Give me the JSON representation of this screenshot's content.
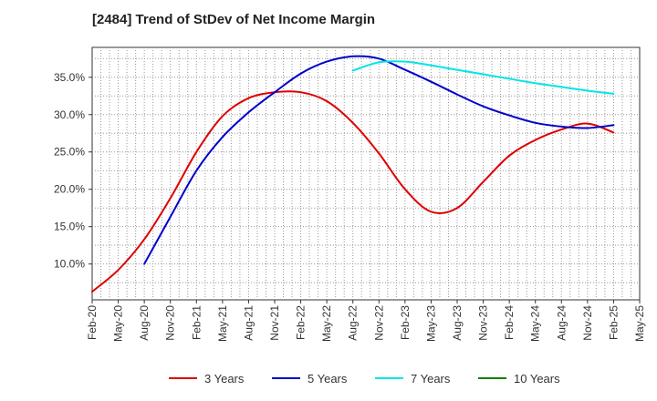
{
  "chart_data": {
    "type": "line",
    "title": "[2484]  Trend of StDev of Net Income Margin",
    "xlabel": "",
    "ylabel": "",
    "x_ticks": [
      "Feb-20",
      "May-20",
      "Aug-20",
      "Nov-20",
      "Feb-21",
      "May-21",
      "Aug-21",
      "Nov-21",
      "Feb-22",
      "May-22",
      "Aug-22",
      "Nov-22",
      "Feb-23",
      "May-23",
      "Aug-23",
      "Nov-23",
      "Feb-24",
      "May-24",
      "Aug-24",
      "Nov-24",
      "Feb-25",
      "May-25"
    ],
    "y_ticks": [
      10,
      15,
      20,
      25,
      30,
      35
    ],
    "y_tick_labels": [
      "10.0%",
      "15.0%",
      "20.0%",
      "25.0%",
      "30.0%",
      "35.0%"
    ],
    "ylim": [
      5.2,
      39.0
    ],
    "grid": true,
    "legend_position": "bottom",
    "series": [
      {
        "name": "3 Years",
        "color": "#dd0000",
        "points": [
          [
            "Feb-20",
            6.3
          ],
          [
            "May-20",
            9.2
          ],
          [
            "Aug-20",
            13.3
          ],
          [
            "Nov-20",
            18.8
          ],
          [
            "Feb-21",
            25.0
          ],
          [
            "May-21",
            29.8
          ],
          [
            "Aug-21",
            32.2
          ],
          [
            "Nov-21",
            33.0
          ],
          [
            "Feb-22",
            33.0
          ],
          [
            "May-22",
            31.8
          ],
          [
            "Aug-22",
            28.9
          ],
          [
            "Nov-22",
            24.8
          ],
          [
            "Feb-23",
            20.0
          ],
          [
            "May-23",
            17.0
          ],
          [
            "Aug-23",
            17.5
          ],
          [
            "Nov-23",
            21.0
          ],
          [
            "Feb-24",
            24.5
          ],
          [
            "May-24",
            26.6
          ],
          [
            "Aug-24",
            28.0
          ],
          [
            "Nov-24",
            28.8
          ],
          [
            "Feb-25",
            27.6
          ]
        ]
      },
      {
        "name": "5 Years",
        "color": "#0000cc",
        "points": [
          [
            "Aug-20",
            10.0
          ],
          [
            "Nov-20",
            16.3
          ],
          [
            "Feb-21",
            22.5
          ],
          [
            "May-21",
            27.0
          ],
          [
            "Aug-21",
            30.3
          ],
          [
            "Nov-21",
            33.0
          ],
          [
            "Feb-22",
            35.5
          ],
          [
            "May-22",
            37.1
          ],
          [
            "Aug-22",
            37.8
          ],
          [
            "Nov-22",
            37.5
          ],
          [
            "Feb-23",
            36.0
          ],
          [
            "May-23",
            34.4
          ],
          [
            "Aug-23",
            32.7
          ],
          [
            "Nov-23",
            31.1
          ],
          [
            "Feb-24",
            29.9
          ],
          [
            "May-24",
            28.9
          ],
          [
            "Aug-24",
            28.4
          ],
          [
            "Nov-24",
            28.2
          ],
          [
            "Feb-25",
            28.6
          ]
        ]
      },
      {
        "name": "7 Years",
        "color": "#00e5e5",
        "points": [
          [
            "Aug-22",
            35.9
          ],
          [
            "Nov-22",
            37.0
          ],
          [
            "Feb-23",
            37.1
          ],
          [
            "May-23",
            36.6
          ],
          [
            "Aug-23",
            36.0
          ],
          [
            "Nov-23",
            35.4
          ],
          [
            "Feb-24",
            34.8
          ],
          [
            "May-24",
            34.2
          ],
          [
            "Aug-24",
            33.7
          ],
          [
            "Nov-24",
            33.2
          ],
          [
            "Feb-25",
            32.8
          ]
        ]
      },
      {
        "name": "10 Years",
        "color": "#008000",
        "points": []
      }
    ]
  }
}
